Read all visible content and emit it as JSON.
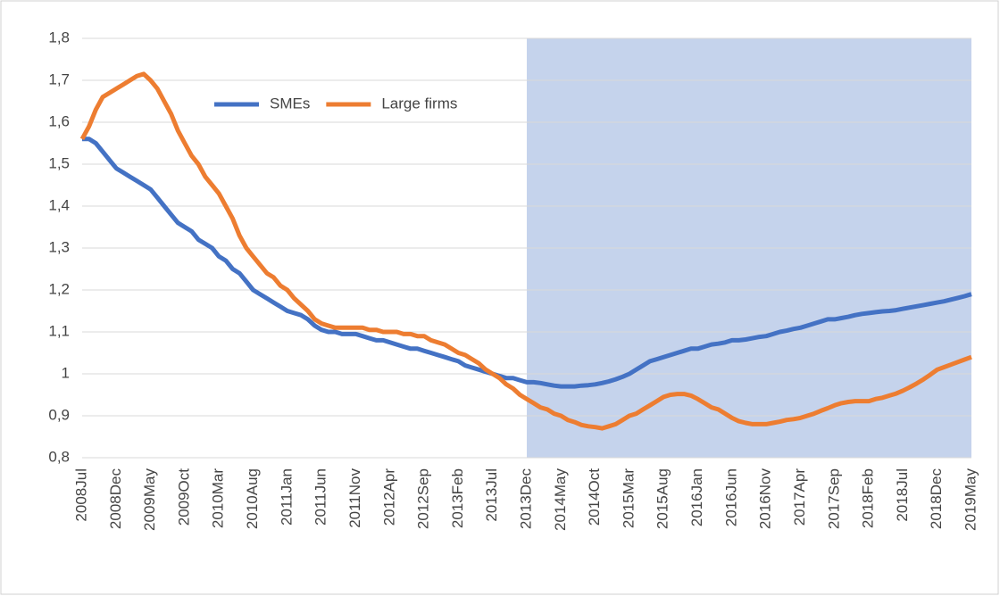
{
  "chart_data": {
    "type": "line",
    "categories": [
      "2008Jul",
      null,
      null,
      null,
      null,
      "2008Dec",
      null,
      null,
      null,
      null,
      "2009May",
      null,
      null,
      null,
      null,
      "2009Oct",
      null,
      null,
      null,
      null,
      "2010Mar",
      null,
      null,
      null,
      null,
      "2010Aug",
      null,
      null,
      null,
      null,
      "2011Jan",
      null,
      null,
      null,
      null,
      "2011Jun",
      null,
      null,
      null,
      null,
      "2011Nov",
      null,
      null,
      null,
      null,
      "2012Apr",
      null,
      null,
      null,
      null,
      "2012Sep",
      null,
      null,
      null,
      null,
      "2013Feb",
      null,
      null,
      null,
      null,
      "2013Jul",
      null,
      null,
      null,
      null,
      "2013Dec",
      null,
      null,
      null,
      null,
      "2014May",
      null,
      null,
      null,
      null,
      "2014Oct",
      null,
      null,
      null,
      null,
      "2015Mar",
      null,
      null,
      null,
      null,
      "2015Aug",
      null,
      null,
      null,
      null,
      "2016Jan",
      null,
      null,
      null,
      null,
      "2016Jun",
      null,
      null,
      null,
      null,
      "2016Nov",
      null,
      null,
      null,
      null,
      "2017Apr",
      null,
      null,
      null,
      null,
      "2017Sep",
      null,
      null,
      null,
      null,
      "2018Feb",
      null,
      null,
      null,
      null,
      "2018Jul",
      null,
      null,
      null,
      null,
      "2018Dec",
      null,
      null,
      null,
      null,
      "2019May"
    ],
    "series": [
      {
        "name": "SMEs",
        "color": "#4472c4",
        "values": [
          1.56,
          1.56,
          1.55,
          1.53,
          1.51,
          1.49,
          1.48,
          1.47,
          1.46,
          1.45,
          1.44,
          1.42,
          1.4,
          1.38,
          1.36,
          1.35,
          1.34,
          1.32,
          1.31,
          1.3,
          1.28,
          1.27,
          1.25,
          1.24,
          1.22,
          1.2,
          1.19,
          1.18,
          1.17,
          1.16,
          1.15,
          1.145,
          1.14,
          1.13,
          1.115,
          1.105,
          1.1,
          1.1,
          1.095,
          1.095,
          1.095,
          1.09,
          1.085,
          1.08,
          1.08,
          1.075,
          1.07,
          1.065,
          1.06,
          1.06,
          1.055,
          1.05,
          1.045,
          1.04,
          1.035,
          1.03,
          1.02,
          1.015,
          1.01,
          1.005,
          1.0,
          0.995,
          0.99,
          0.99,
          0.985,
          0.98,
          0.98,
          0.978,
          0.975,
          0.972,
          0.97,
          0.97,
          0.97,
          0.972,
          0.973,
          0.975,
          0.978,
          0.982,
          0.987,
          0.993,
          1.0,
          1.01,
          1.02,
          1.03,
          1.035,
          1.04,
          1.045,
          1.05,
          1.055,
          1.06,
          1.06,
          1.065,
          1.07,
          1.072,
          1.075,
          1.08,
          1.08,
          1.082,
          1.085,
          1.088,
          1.09,
          1.095,
          1.1,
          1.103,
          1.107,
          1.11,
          1.115,
          1.12,
          1.125,
          1.13,
          1.13,
          1.133,
          1.136,
          1.14,
          1.143,
          1.145,
          1.147,
          1.149,
          1.15,
          1.152,
          1.155,
          1.158,
          1.161,
          1.164,
          1.167,
          1.17,
          1.173,
          1.177,
          1.181,
          1.185,
          1.19
        ]
      },
      {
        "name": "Large firms",
        "color": "#ed7d31",
        "values": [
          1.56,
          1.59,
          1.63,
          1.66,
          1.67,
          1.68,
          1.69,
          1.7,
          1.71,
          1.715,
          1.7,
          1.68,
          1.65,
          1.62,
          1.58,
          1.55,
          1.52,
          1.5,
          1.47,
          1.45,
          1.43,
          1.4,
          1.37,
          1.33,
          1.3,
          1.28,
          1.26,
          1.24,
          1.23,
          1.21,
          1.2,
          1.18,
          1.165,
          1.15,
          1.13,
          1.12,
          1.115,
          1.11,
          1.11,
          1.11,
          1.11,
          1.11,
          1.105,
          1.105,
          1.1,
          1.1,
          1.1,
          1.095,
          1.095,
          1.09,
          1.09,
          1.08,
          1.075,
          1.07,
          1.06,
          1.05,
          1.045,
          1.035,
          1.025,
          1.01,
          1.0,
          0.99,
          0.975,
          0.965,
          0.95,
          0.94,
          0.93,
          0.92,
          0.915,
          0.905,
          0.9,
          0.89,
          0.885,
          0.878,
          0.875,
          0.873,
          0.87,
          0.875,
          0.88,
          0.89,
          0.9,
          0.905,
          0.915,
          0.925,
          0.935,
          0.945,
          0.95,
          0.952,
          0.952,
          0.948,
          0.94,
          0.93,
          0.92,
          0.915,
          0.905,
          0.895,
          0.887,
          0.883,
          0.88,
          0.88,
          0.88,
          0.883,
          0.886,
          0.89,
          0.892,
          0.895,
          0.9,
          0.905,
          0.912,
          0.918,
          0.925,
          0.93,
          0.933,
          0.935,
          0.935,
          0.935,
          0.94,
          0.943,
          0.948,
          0.953,
          0.96,
          0.968,
          0.977,
          0.987,
          0.998,
          1.01,
          1.016,
          1.022,
          1.028,
          1.034,
          1.04
        ]
      }
    ],
    "ylim": [
      0.8,
      1.8
    ],
    "yticks": [
      {
        "value": 0.8,
        "label": "0,8"
      },
      {
        "value": 0.9,
        "label": "0,9"
      },
      1,
      {
        "value": 1.1,
        "label": "1,1"
      },
      {
        "value": 1.2,
        "label": "1,2"
      },
      {
        "value": 1.3,
        "label": "1,3"
      },
      {
        "value": 1.4,
        "label": "1,4"
      },
      {
        "value": 1.5,
        "label": "1,5"
      },
      {
        "value": 1.6,
        "label": "1,6"
      },
      {
        "value": 1.7,
        "label": "1,7"
      },
      {
        "value": 1.8,
        "label": "1,8"
      }
    ],
    "grid": true,
    "legend": "top-left",
    "highlight": {
      "from": "2013Dec",
      "to": "2019May",
      "color": "#c5d3ec"
    }
  }
}
